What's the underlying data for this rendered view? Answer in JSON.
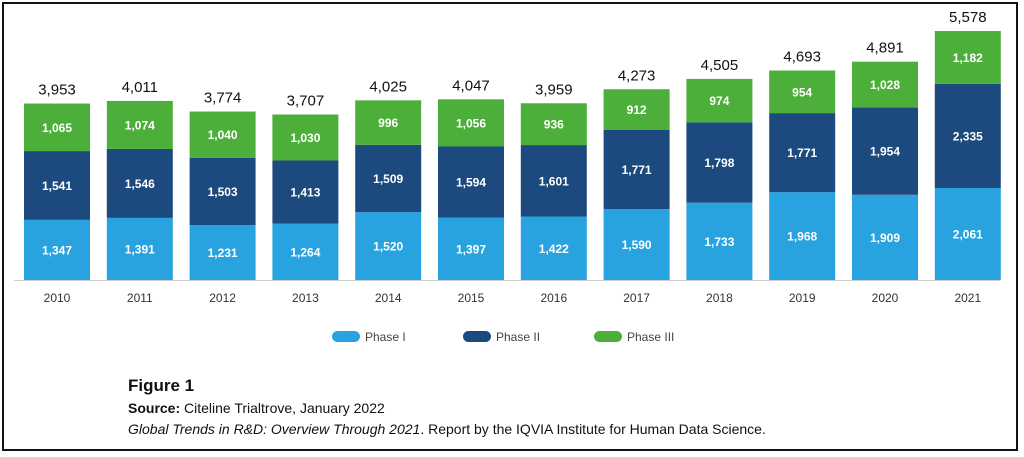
{
  "chart_data": {
    "type": "bar",
    "stacked": true,
    "categories": [
      "2010",
      "2011",
      "2012",
      "2013",
      "2014",
      "2015",
      "2016",
      "2017",
      "2018",
      "2019",
      "2020",
      "2021"
    ],
    "series": [
      {
        "name": "Phase I",
        "color": "#29a3e0",
        "values": [
          1347,
          1391,
          1231,
          1264,
          1520,
          1397,
          1422,
          1590,
          1733,
          1968,
          1909,
          2061
        ]
      },
      {
        "name": "Phase II",
        "color": "#1d4a7e",
        "values": [
          1541,
          1546,
          1503,
          1413,
          1509,
          1594,
          1601,
          1771,
          1798,
          1771,
          1954,
          2335
        ]
      },
      {
        "name": "Phase III",
        "color": "#4caf3a",
        "values": [
          1065,
          1074,
          1040,
          1030,
          996,
          1056,
          936,
          912,
          974,
          954,
          1028,
          1182
        ]
      }
    ],
    "totals": [
      3953,
      4011,
      3774,
      3707,
      4025,
      4047,
      3959,
      4273,
      4505,
      4693,
      4891,
      5578
    ],
    "value_labels": {
      "Phase I": [
        "1,347",
        "1,391",
        "1,231",
        "1,264",
        "1,520",
        "1,397",
        "1,422",
        "1,590",
        "1,733",
        "1,968",
        "1,909",
        "2,061"
      ],
      "Phase II": [
        "1,541",
        "1,546",
        "1,503",
        "1,413",
        "1,509",
        "1,594",
        "1,601",
        "1,771",
        "1,798",
        "1,771",
        "1,954",
        "2,335"
      ],
      "Phase III": [
        "1,065",
        "1,074",
        "1,040",
        "1,030",
        "996",
        "1,056",
        "936",
        "912",
        "974",
        "954",
        "1,028",
        "1,182"
      ]
    },
    "total_labels": [
      "3,953",
      "4,011",
      "3,774",
      "3,707",
      "4,025",
      "4,047",
      "3,959",
      "4,273",
      "4,505",
      "4,693",
      "4,891",
      "5,578"
    ],
    "ylim": [
      0,
      5578
    ],
    "grid": false,
    "legend_position": "bottom-center"
  },
  "caption": {
    "figure_label": "Figure 1",
    "source_label": "Source:",
    "source_text": "Citeline Trialtrove, January 2022",
    "report_title": "Global Trends in R&D: Overview Through 2021",
    "report_rest": ". Report by the IQVIA Institute for Human Data Science."
  }
}
